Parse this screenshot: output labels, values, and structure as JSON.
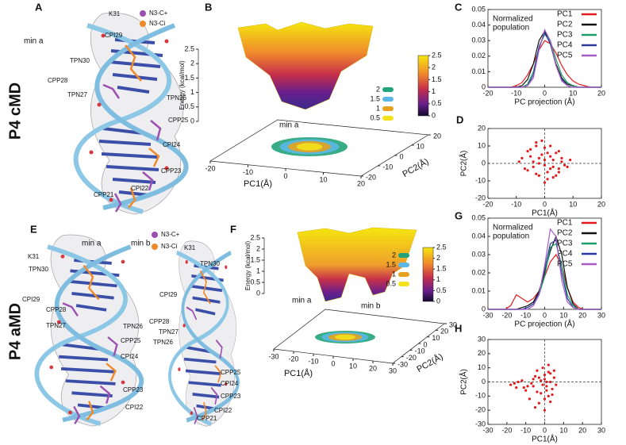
{
  "row_labels": [
    "P4 cMD",
    "P4 aMD"
  ],
  "panel_letters": [
    "A",
    "B",
    "C",
    "D",
    "E",
    "F",
    "G",
    "H"
  ],
  "molecules": [
    {
      "legend": [
        {
          "text": "N3-C+",
          "color": "#9b4fb0"
        },
        {
          "text": "N3-Ci",
          "color": "#ee8a2a"
        }
      ],
      "labels": [
        {
          "text": "min a",
          "color": "#111"
        },
        {
          "text": "K31",
          "color": "#111"
        },
        {
          "text": "CPI29",
          "color": "#e07b24"
        },
        {
          "text": "TPN30",
          "color": "#111"
        },
        {
          "text": "CPP28",
          "color": "#9b4fb0"
        },
        {
          "text": "TPN27",
          "color": "#111"
        },
        {
          "text": "TPN26",
          "color": "#111"
        },
        {
          "text": "CPP25",
          "color": "#9b4fb0"
        },
        {
          "text": "CPI24",
          "color": "#e07b24"
        },
        {
          "text": "CPP23",
          "color": "#9b4fb0"
        },
        {
          "text": "CPI22",
          "color": "#e07b24"
        },
        {
          "text": "CPP21",
          "color": "#9b4fb0"
        }
      ]
    },
    {
      "legend": [
        {
          "text": "N3-C+",
          "color": "#9b4fb0"
        },
        {
          "text": "N3-Ci",
          "color": "#ee8a2a"
        }
      ],
      "labels": [
        {
          "text": "min a",
          "color": "#111"
        },
        {
          "text": "min b",
          "color": "#111"
        },
        {
          "text": "K31",
          "color": "#111"
        },
        {
          "text": "TPN30",
          "color": "#111"
        },
        {
          "text": "CPI29",
          "color": "#e07b24"
        },
        {
          "text": "CPP28",
          "color": "#9b4fb0"
        },
        {
          "text": "TPN27",
          "color": "#111"
        },
        {
          "text": "TPN26",
          "color": "#111"
        },
        {
          "text": "CPP25",
          "color": "#9b4fb0"
        },
        {
          "text": "CPI24",
          "color": "#e07b24"
        },
        {
          "text": "CPP23",
          "color": "#9b4fb0"
        },
        {
          "text": "CPI22",
          "color": "#e07b24"
        },
        {
          "text": "K31",
          "color": "#111"
        },
        {
          "text": "TPN30",
          "color": "#111"
        },
        {
          "text": "CPI29",
          "color": "#e07b24"
        },
        {
          "text": "CPP28",
          "color": "#9b4fb0"
        },
        {
          "text": "TPN27",
          "color": "#111"
        },
        {
          "text": "TPN26",
          "color": "#111"
        },
        {
          "text": "CPP25",
          "color": "#9b4fb0"
        },
        {
          "text": "CPI24",
          "color": "#e07b24"
        },
        {
          "text": "CPP23",
          "color": "#9b4fb0"
        },
        {
          "text": "CPI22",
          "color": "#e07b24"
        },
        {
          "text": "CPP21",
          "color": "#9b4fb0"
        }
      ]
    }
  ],
  "surfaces": [
    {
      "zlabel": "Energy (kcal/mol)",
      "zlim": [
        0,
        2.5
      ],
      "zticks": [
        0,
        0.5,
        1,
        1.5,
        2,
        2.5
      ],
      "minima": [
        "min a"
      ],
      "clim": [
        0,
        2.5
      ],
      "colorbar_ticks": [
        0,
        0.5,
        1,
        1.5,
        2,
        2.5
      ],
      "contour_levels": [
        2,
        1.5,
        1,
        0.5
      ],
      "contour_colors": [
        "#22a37a",
        "#5bb8e6",
        "#e6a21e",
        "#f3e21c"
      ],
      "xlabel": "PC1(Å)",
      "xlim": [
        -20,
        20
      ],
      "xticks": [
        -20,
        -10,
        0,
        10,
        20
      ],
      "ylabel": "PC2(Å)",
      "ylim": [
        -20,
        20
      ],
      "yticks": [
        -20,
        -10,
        0,
        10,
        20
      ]
    },
    {
      "zlabel": "Energy (kcal/mol)",
      "zlim": [
        0,
        2.5
      ],
      "zticks": [
        0,
        0.5,
        1,
        1.5,
        2,
        2.5
      ],
      "minima": [
        "min a",
        "min b"
      ],
      "clim": [
        0,
        2.5
      ],
      "colorbar_ticks": [
        0,
        0.5,
        1,
        1.5,
        2,
        2.5
      ],
      "contour_levels": [
        2,
        1.5,
        1,
        0.5
      ],
      "contour_colors": [
        "#22a37a",
        "#5bb8e6",
        "#e6a21e",
        "#f3e21c"
      ],
      "xlabel": "PC1(Å)",
      "xlim": [
        -30,
        30
      ],
      "xticks": [
        -30,
        -20,
        -10,
        0,
        10,
        20,
        30
      ],
      "ylabel": "PC2(Å)",
      "ylim": [
        -30,
        30
      ],
      "yticks": [
        -30,
        -20,
        -10,
        0,
        10,
        20,
        30
      ]
    }
  ],
  "chart_data": [
    {
      "type": "line",
      "xlabel": "PC projection (Å)",
      "ylabel": [
        "Normalized",
        "population"
      ],
      "x": [
        -20,
        -18,
        -16,
        -14,
        -12,
        -10,
        -8,
        -6,
        -4,
        -2,
        0,
        2,
        4,
        6,
        8,
        10,
        12,
        14,
        16,
        18,
        20
      ],
      "xlim": [
        -20,
        20
      ],
      "xticks": [
        -20,
        -10,
        0,
        10,
        20
      ],
      "ylim": [
        0,
        0.05
      ],
      "yticks": [
        0,
        0.01,
        0.02,
        0.03,
        0.04,
        0.05
      ],
      "series": [
        {
          "name": "PC1",
          "color": "#e41a1c",
          "values": [
            0,
            0,
            0,
            0,
            0,
            0.001,
            0.003,
            0.008,
            0.015,
            0.024,
            0.03,
            0.028,
            0.022,
            0.014,
            0.008,
            0.004,
            0.002,
            0.001,
            0,
            0,
            0
          ]
        },
        {
          "name": "PC2",
          "color": "#111111",
          "values": [
            0,
            0,
            0,
            0,
            0,
            0,
            0.001,
            0.005,
            0.015,
            0.03,
            0.036,
            0.028,
            0.015,
            0.006,
            0.002,
            0.001,
            0,
            0,
            0,
            0,
            0
          ]
        },
        {
          "name": "PC3",
          "color": "#1a9e6a",
          "values": [
            0,
            0,
            0,
            0,
            0,
            0,
            0,
            0.002,
            0.01,
            0.026,
            0.034,
            0.03,
            0.018,
            0.008,
            0.003,
            0.001,
            0,
            0,
            0,
            0,
            0
          ]
        },
        {
          "name": "PC4",
          "color": "#2b3a9e",
          "values": [
            0,
            0,
            0,
            0,
            0,
            0,
            0,
            0.001,
            0.008,
            0.026,
            0.035,
            0.028,
            0.014,
            0.005,
            0.001,
            0,
            0,
            0,
            0,
            0,
            0
          ]
        },
        {
          "name": "PC5",
          "color": "#a45cc0",
          "values": [
            0,
            0,
            0,
            0,
            0,
            0,
            0,
            0.001,
            0.006,
            0.024,
            0.037,
            0.03,
            0.014,
            0.004,
            0.001,
            0,
            0,
            0,
            0,
            0,
            0
          ]
        }
      ]
    },
    {
      "type": "scatter",
      "xlabel": "PC1(Å)",
      "ylabel": "PC2(Å)",
      "color": "#e41a1c",
      "xlim": [
        -20,
        20
      ],
      "xticks": [
        -20,
        -10,
        0,
        10,
        20
      ],
      "ylim": [
        -20,
        20
      ],
      "yticks": [
        -20,
        -10,
        0,
        10,
        20
      ],
      "x": [
        -8,
        -6,
        -5,
        -4,
        -3,
        -2,
        -1,
        0,
        1,
        2,
        3,
        4,
        5,
        6,
        7,
        -7,
        -3,
        2,
        5,
        -1,
        0,
        3,
        -5,
        1,
        -2,
        4,
        6,
        -4,
        2,
        0,
        -6,
        8,
        -9,
        9,
        1,
        -2,
        3,
        -3,
        5,
        0
      ],
      "values": [
        3,
        -4,
        8,
        1,
        12,
        -7,
        5,
        2,
        -9,
        10,
        -2,
        6,
        -5,
        3,
        -1,
        -3,
        -6,
        -3,
        7,
        13,
        -11,
        2,
        4,
        6,
        0,
        -7,
        1,
        -2,
        4,
        9,
        7,
        -2,
        1,
        2,
        -5,
        3,
        -8,
        10,
        -3,
        -1
      ]
    },
    {
      "type": "line",
      "xlabel": "PC projection (Å)",
      "ylabel": [
        "Normalized",
        "population"
      ],
      "x": [
        -30,
        -27,
        -24,
        -21,
        -18,
        -15,
        -12,
        -9,
        -6,
        -3,
        0,
        3,
        6,
        9,
        12,
        15,
        18,
        21,
        24,
        27,
        30
      ],
      "xlim": [
        -30,
        30
      ],
      "xticks": [
        -30,
        -20,
        -10,
        0,
        10,
        20,
        30
      ],
      "ylim": [
        0,
        0.05
      ],
      "yticks": [
        0,
        0.01,
        0.02,
        0.03,
        0.04,
        0.05
      ],
      "series": [
        {
          "name": "PC1",
          "color": "#e41a1c",
          "values": [
            0,
            0,
            0,
            0,
            0.002,
            0.008,
            0.006,
            0.004,
            0.006,
            0.01,
            0.018,
            0.026,
            0.03,
            0.024,
            0.012,
            0.004,
            0.001,
            0,
            0,
            0,
            0
          ]
        },
        {
          "name": "PC2",
          "color": "#111111",
          "values": [
            0,
            0,
            0,
            0,
            0,
            0,
            0.001,
            0.002,
            0.004,
            0.01,
            0.02,
            0.032,
            0.04,
            0.03,
            0.012,
            0.003,
            0,
            0,
            0,
            0,
            0
          ]
        },
        {
          "name": "PC3",
          "color": "#1a9e6a",
          "values": [
            0,
            0,
            0,
            0,
            0,
            0,
            0,
            0.001,
            0.003,
            0.008,
            0.018,
            0.034,
            0.036,
            0.024,
            0.008,
            0.002,
            0,
            0,
            0,
            0,
            0
          ]
        },
        {
          "name": "PC4",
          "color": "#2b3a9e",
          "values": [
            0,
            0,
            0,
            0,
            0,
            0,
            0,
            0.001,
            0.003,
            0.009,
            0.022,
            0.036,
            0.038,
            0.02,
            0.006,
            0.001,
            0,
            0,
            0,
            0,
            0
          ]
        },
        {
          "name": "PC5",
          "color": "#a45cc0",
          "values": [
            0,
            0,
            0,
            0,
            0,
            0,
            0,
            0,
            0.002,
            0.008,
            0.024,
            0.044,
            0.04,
            0.016,
            0.004,
            0.001,
            0,
            0,
            0,
            0,
            0
          ]
        }
      ]
    },
    {
      "type": "scatter",
      "xlabel": "PC1(Å)",
      "ylabel": "PC2(Å)",
      "color": "#e41a1c",
      "xlim": [
        -30,
        30
      ],
      "xticks": [
        -30,
        -20,
        -10,
        0,
        10,
        20,
        30
      ],
      "ylim": [
        -30,
        30
      ],
      "yticks": [
        -30,
        -20,
        -10,
        0,
        10,
        20,
        30
      ],
      "x": [
        -18,
        -15,
        -12,
        -10,
        -8,
        -6,
        -5,
        -4,
        -3,
        -2,
        -1,
        0,
        1,
        2,
        3,
        4,
        5,
        6,
        -14,
        -9,
        -7,
        -3,
        0,
        2,
        4,
        -1,
        3,
        -5,
        1,
        -2,
        0,
        2,
        -11,
        -16,
        -4,
        5,
        1,
        -6,
        3,
        0
      ],
      "values": [
        -2,
        -4,
        1,
        -6,
        -12,
        2,
        -18,
        8,
        3,
        -8,
        10,
        5,
        -3,
        7,
        0,
        -5,
        3,
        -2,
        0,
        -3,
        -1,
        -15,
        -20,
        12,
        -9,
        -2,
        6,
        4,
        -6,
        1,
        -12,
        -10,
        -4,
        -1,
        -7,
        8,
        0,
        -3,
        -14,
        2
      ]
    }
  ]
}
